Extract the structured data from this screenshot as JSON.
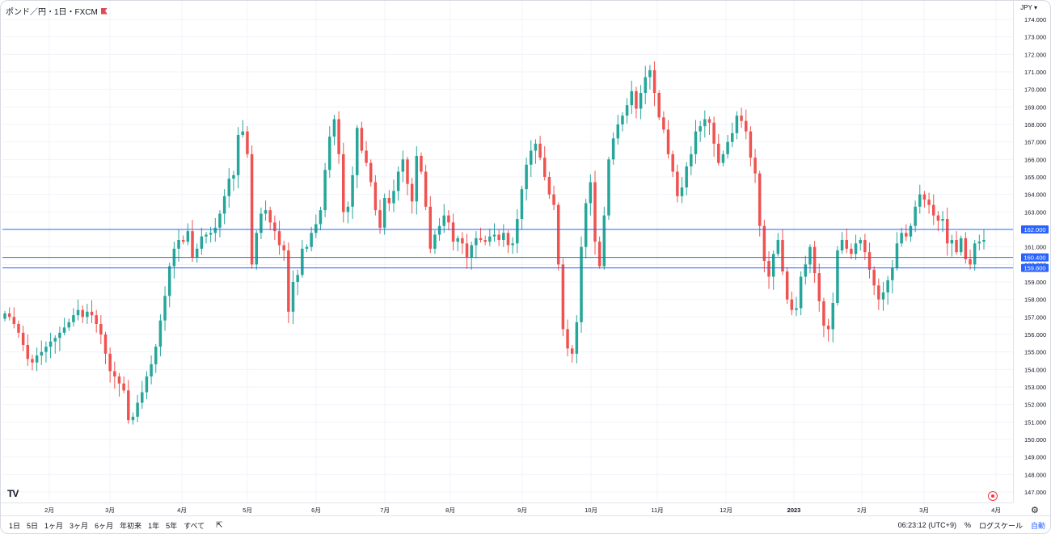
{
  "header": {
    "symbol": "ポンド／円・1日・FXCM",
    "currency": "JPY"
  },
  "bottom_bar": {
    "timeframes": [
      "1日",
      "5日",
      "1ヶ月",
      "3ヶ月",
      "6ヶ月",
      "年初来",
      "1年",
      "5年",
      "すべて"
    ],
    "goto_icon": "calendar-range-icon",
    "time": "06:23:12 (UTC+9)",
    "percent": "%",
    "log_scale": "ログスケール",
    "auto": "自動"
  },
  "colors": {
    "up": "#26a69a",
    "down": "#ef5350",
    "hline": "#2962ff",
    "grid": "#f0f3fa",
    "axis_text": "#131722"
  },
  "chart_data": {
    "type": "candlestick",
    "title": "",
    "ylim": [
      146.7,
      174.5
    ],
    "y_ticks": [
      "147.000",
      "148.000",
      "149.000",
      "150.000",
      "151.000",
      "152.000",
      "153.000",
      "154.000",
      "155.000",
      "156.000",
      "157.000",
      "158.000",
      "159.000",
      "160.000",
      "161.000",
      "162.000",
      "163.000",
      "164.000",
      "165.000",
      "166.000",
      "167.000",
      "168.000",
      "169.000",
      "170.000",
      "171.000",
      "172.000",
      "173.000",
      "174.000"
    ],
    "x_ticks": [
      "2月",
      "3月",
      "4月",
      "5月",
      "6月",
      "7月",
      "8月",
      "9月",
      "10月",
      "11月",
      "12月",
      "2023",
      "2月",
      "3月",
      "4月"
    ],
    "horizontal_lines": [
      {
        "value": 162.0,
        "label": "162.000"
      },
      {
        "value": 160.4,
        "label": "160.400"
      },
      {
        "value": 159.8,
        "label": "159.800"
      }
    ],
    "closes": [
      157.2,
      157.0,
      156.6,
      156.1,
      155.4,
      154.6,
      154.4,
      154.8,
      155.0,
      155.3,
      155.6,
      155.8,
      156.1,
      156.4,
      156.7,
      157.1,
      157.4,
      157.0,
      157.3,
      157.1,
      156.6,
      156.0,
      154.9,
      153.9,
      153.6,
      153.2,
      152.8,
      151.1,
      151.3,
      152.1,
      152.7,
      153.6,
      154.3,
      155.3,
      156.8,
      158.2,
      159.9,
      160.9,
      161.4,
      161.3,
      161.9,
      160.4,
      160.9,
      161.6,
      161.7,
      161.8,
      162.1,
      162.9,
      163.9,
      164.9,
      165.1,
      167.4,
      167.6,
      166.3,
      160.0,
      161.8,
      162.9,
      163.1,
      162.4,
      161.9,
      161.1,
      160.8,
      157.3,
      159.0,
      159.4,
      160.9,
      161.0,
      161.8,
      162.3,
      163.1,
      165.4,
      167.3,
      168.3,
      166.3,
      163.0,
      163.3,
      165.1,
      167.8,
      166.5,
      165.8,
      164.7,
      163.1,
      162.1,
      163.8,
      163.5,
      164.2,
      165.3,
      166.0,
      164.6,
      163.6,
      166.2,
      165.3,
      163.3,
      160.9,
      161.7,
      162.2,
      162.8,
      162.4,
      161.3,
      161.5,
      161.2,
      160.4,
      161.1,
      161.5,
      161.4,
      161.3,
      161.6,
      161.7,
      161.4,
      161.8,
      161.1,
      161.2,
      162.6,
      164.3,
      165.7,
      166.5,
      166.9,
      166.1,
      165.0,
      164.0,
      163.4,
      160.0,
      156.3,
      155.2,
      154.9,
      156.7,
      161.0,
      163.5,
      164.7,
      161.3,
      159.9,
      162.8,
      166.0,
      167.2,
      168.0,
      168.5,
      169.1,
      169.9,
      168.9,
      169.8,
      170.7,
      171.1,
      169.8,
      168.4,
      167.7,
      166.3,
      165.3,
      163.9,
      164.4,
      165.6,
      166.3,
      167.6,
      167.9,
      168.3,
      168.1,
      166.9,
      165.8,
      166.3,
      167.0,
      167.5,
      168.5,
      168.2,
      167.6,
      166.1,
      165.2,
      162.2,
      160.2,
      159.3,
      160.6,
      161.4,
      159.6,
      158.0,
      157.4,
      157.5,
      159.3,
      160.0,
      161.0,
      159.5,
      157.9,
      156.5,
      156.3,
      157.8,
      160.8,
      161.4,
      160.9,
      160.6,
      161.2,
      161.4,
      160.7,
      159.7,
      158.8,
      158.0,
      158.4,
      159.1,
      159.8,
      161.2,
      161.8,
      161.6,
      162.2,
      163.3,
      164.0,
      163.7,
      163.4,
      162.8,
      162.5,
      162.6,
      161.2,
      161.4,
      160.7,
      161.5,
      160.3,
      160.0,
      161.2,
      161.3,
      161.4
    ]
  }
}
